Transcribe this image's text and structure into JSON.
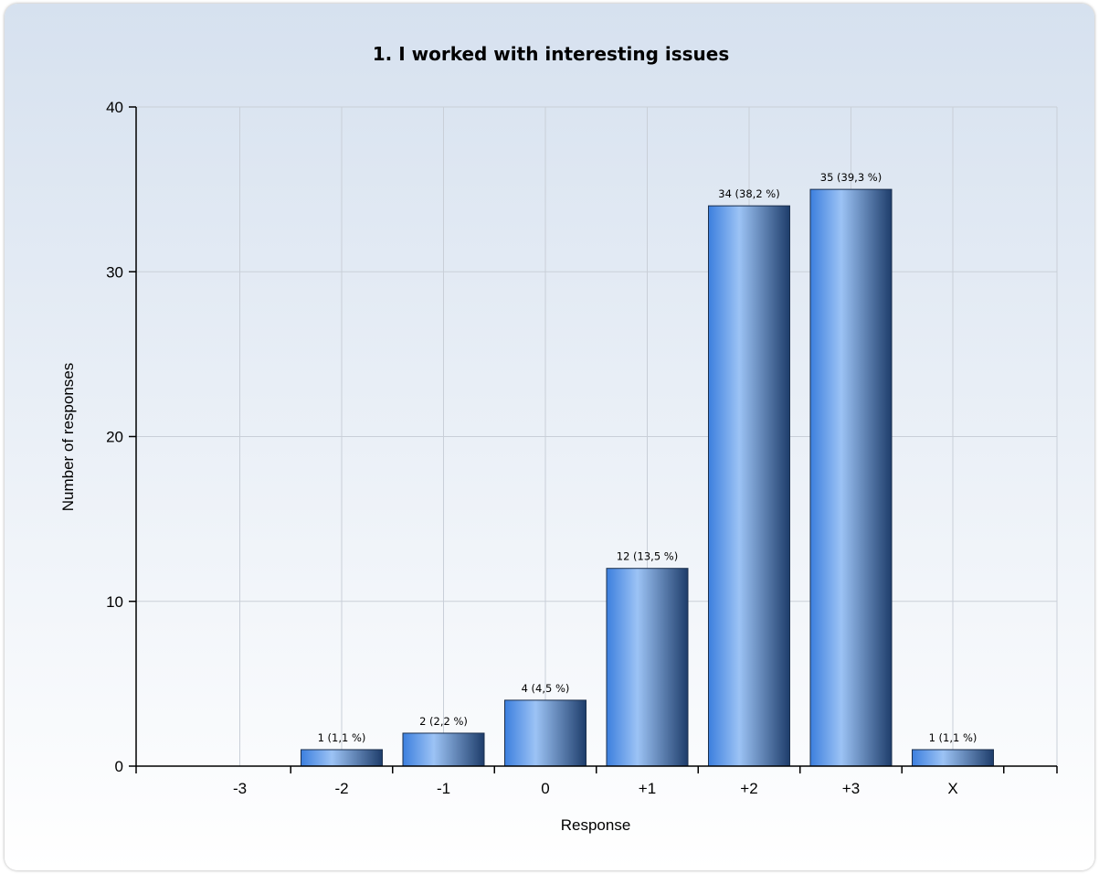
{
  "chart_data": {
    "type": "bar",
    "title": "1. I worked with interesting issues",
    "xlabel": "Response",
    "ylabel": "Number of responses",
    "categories": [
      "-3",
      "-2",
      "-1",
      "0",
      "+1",
      "+2",
      "+3",
      "X"
    ],
    "values": [
      0,
      1,
      2,
      4,
      12,
      34,
      35,
      1
    ],
    "data_labels": [
      "",
      "1 (1,1 %)",
      "2 (2,2 %)",
      "4 (4,5 %)",
      "12 (13,5 %)",
      "34 (38,2 %)",
      "35 (39,3 %)",
      "1 (1,1 %)"
    ],
    "ylim": [
      0,
      40
    ],
    "yticks": [
      0,
      10,
      20,
      30,
      40
    ],
    "grid": true,
    "legend": "none",
    "colors": {
      "bar_light": "#9cc3f5",
      "bar_mid": "#4c8fe6",
      "bar_dark": "#1e3d6b",
      "grid": "#c9cfd8",
      "background_top": "#d6e1ef",
      "background_bottom": "#ffffff"
    }
  }
}
